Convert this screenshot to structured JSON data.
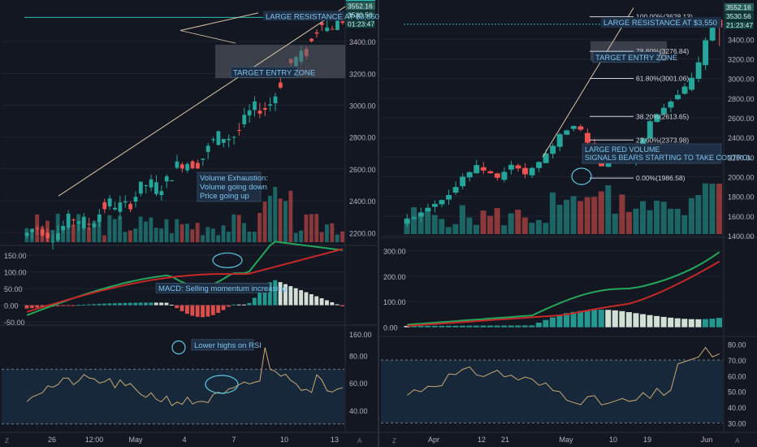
{
  "colors": {
    "background": "#131722",
    "grid": "#1f2433",
    "bull": "#26a69a",
    "bear": "#ef5350",
    "macd_line": "#26a65b",
    "signal_line": "#c62828",
    "rsi_line": "#c8a971",
    "rsi_band": "#1c3a52",
    "resistance": "#2bbbad",
    "trendline": "#d9c3a3",
    "annotation_text": "#7fc4f0",
    "annotation_bg": "#1e2f44",
    "circle": "#5ec8e0"
  },
  "chart_data": [
    {
      "type": "candlestick",
      "panel": "left-price",
      "axis_currency": "USD",
      "price_axis_ticks": [
        "3400.00",
        "3200.00",
        "3000.00",
        "2800.00",
        "2600.00",
        "2400.00",
        "2200.00"
      ],
      "price_tags": [
        "3552.16",
        "3552.16",
        "3530.56",
        "01:23:47"
      ],
      "time_axis_ticks": [
        "26",
        "12:00",
        "May",
        "4",
        "7",
        "10",
        "13"
      ],
      "ylim": [
        2130,
        3600
      ],
      "resistance_level": 3552,
      "target_zone": [
        3170,
        3380
      ],
      "annotations": {
        "resistance": "LARGE RESISTANCE AT $3,550",
        "target": "TARGET ENTRY ZONE",
        "volume": [
          "Volume Exhaustion:",
          "Volume going down",
          "Price going up"
        ]
      }
    },
    {
      "type": "line",
      "panel": "left-macd",
      "axis_ticks": [
        "150.00",
        "100.00",
        "50.00",
        "0.00",
        "-50.00"
      ],
      "ylim": [
        -55,
        170
      ],
      "annotation": "MACD: Selling momentum increasing"
    },
    {
      "type": "line",
      "panel": "left-rsi",
      "axis_ticks": [
        "160.00",
        "80.00",
        "60.00",
        "40.00"
      ],
      "band": [
        30,
        70
      ],
      "ylim": [
        25,
        100
      ],
      "annotation": "Lower highs on RSI"
    },
    {
      "type": "candlestick",
      "panel": "right-price",
      "axis_currency": "USD",
      "price_axis_ticks": [
        "3400.00",
        "3200.00",
        "3000.00",
        "2800.00",
        "2600.00",
        "2400.00",
        "2200.00",
        "2000.00",
        "1800.00",
        "1600.00",
        "1400.00"
      ],
      "price_tags": [
        "3552.16",
        "3530.56",
        "21:23:47"
      ],
      "time_axis_ticks": [
        "Apr",
        "12",
        "21",
        "May",
        "10",
        "19",
        "Jun"
      ],
      "ylim": [
        1400,
        3700
      ],
      "resistance_level": 3552,
      "fibonacci": [
        {
          "label": "100.00%(3628.13)",
          "value": 3628.13
        },
        {
          "label": "78.60%(3276.84)",
          "value": 3276.84
        },
        {
          "label": "61.80%(3001.06)",
          "value": 3001.06
        },
        {
          "label": "38.20%(2613.65)",
          "value": 2613.65
        },
        {
          "label": "23.60%(2373.98)",
          "value": 2373.98
        },
        {
          "label": "0.00%(1986.58)",
          "value": 1986.58
        }
      ],
      "annotations": {
        "resistance": "LARGE RESISTANCE AT $3,550",
        "target": "TARGET ENTRY ZONE",
        "volume": [
          "LARGE RED VOLUME",
          "SIGNALS BEARS STARTING TO TAKE CONTROL"
        ]
      }
    },
    {
      "type": "line",
      "panel": "right-macd",
      "axis_ticks": [
        "300.00",
        "200.00",
        "100.00",
        "0.00"
      ],
      "ylim": [
        -30,
        340
      ]
    },
    {
      "type": "line",
      "panel": "right-rsi",
      "axis_ticks": [
        "80.00",
        "70.00",
        "60.00",
        "50.00",
        "40.00",
        "30.00"
      ],
      "band": [
        30,
        70
      ],
      "ylim": [
        25,
        84
      ]
    }
  ],
  "footer": {
    "tz_left": "Z",
    "auto_left": "A",
    "tz_right": "Z",
    "auto_right": "A"
  }
}
